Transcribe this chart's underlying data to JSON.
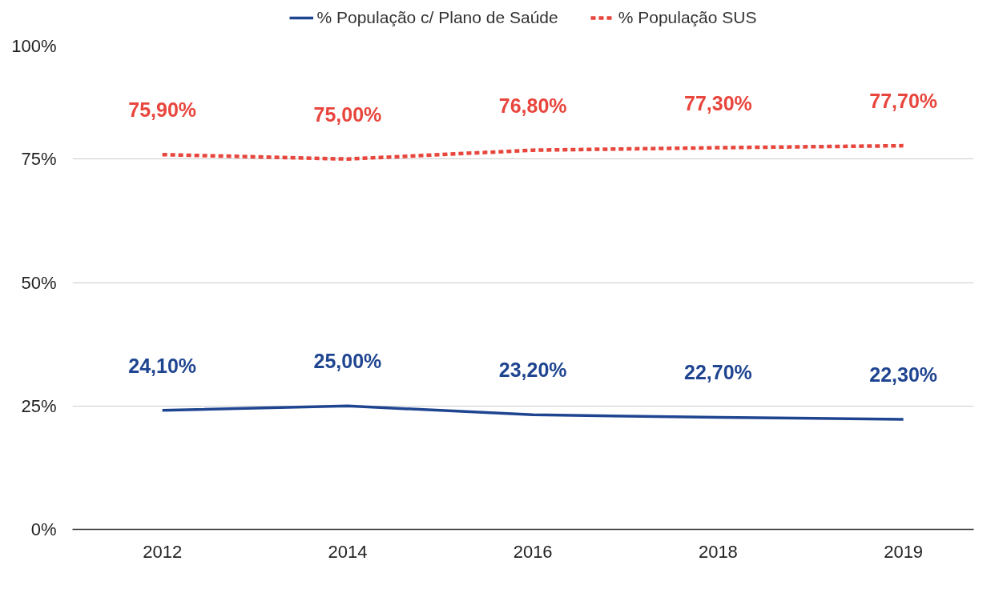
{
  "chart_data": {
    "type": "line",
    "categories": [
      "2012",
      "2014",
      "2016",
      "2018",
      "2019"
    ],
    "series": [
      {
        "name": "% População c/ Plano de Saúde",
        "color": "#1f4591",
        "line_style": "solid",
        "values": [
          24.1,
          25.0,
          23.2,
          22.7,
          22.3
        ],
        "value_labels": [
          "24,10%",
          "25,00%",
          "23,20%",
          "22,70%",
          "22,30%"
        ]
      },
      {
        "name": "% População SUS",
        "color": "#e8453c",
        "line_style": "dotted",
        "values": [
          75.9,
          75.0,
          76.8,
          77.3,
          77.7
        ],
        "value_labels": [
          "75,90%",
          "75,00%",
          "76,80%",
          "77,30%",
          "77,70%"
        ]
      }
    ],
    "ylim": [
      0,
      100
    ],
    "yticks": [
      {
        "value": 0,
        "label": "0%"
      },
      {
        "value": 25,
        "label": "25%"
      },
      {
        "value": 50,
        "label": "50%"
      },
      {
        "value": 75,
        "label": "75%"
      },
      {
        "value": 100,
        "label": "100%"
      }
    ],
    "grid": "y",
    "legend": "top"
  }
}
